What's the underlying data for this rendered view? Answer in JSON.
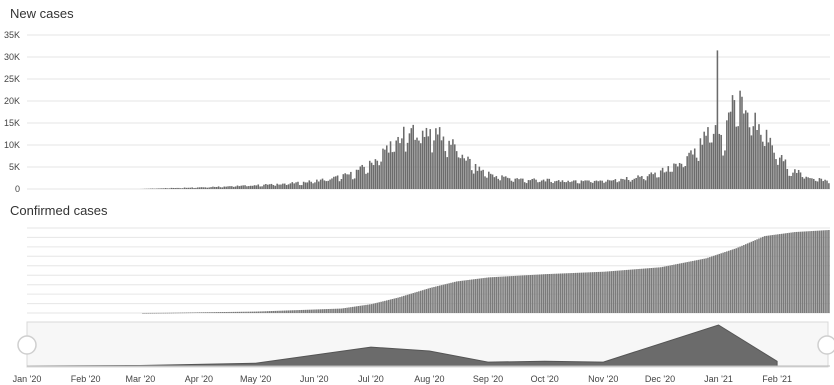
{
  "chart_data": [
    {
      "type": "bar",
      "title": "New cases",
      "y_ticks": [
        "35K",
        "30K",
        "25K",
        "20K",
        "15K",
        "10K",
        "5K",
        "0"
      ],
      "ylim": [
        0,
        35000
      ],
      "grid": true,
      "bar_color": "#6b6b6b",
      "x_unit": "date",
      "x_start": "2020-01-22",
      "x_end": "2021-02-28",
      "daily_profile": [
        {
          "date": "2020-01-22",
          "value": 0
        },
        {
          "date": "2020-02-29",
          "value": 0
        },
        {
          "date": "2020-03-10",
          "value": 150
        },
        {
          "date": "2020-04-01",
          "value": 400
        },
        {
          "date": "2020-05-01",
          "value": 900
        },
        {
          "date": "2020-05-25",
          "value": 1500
        },
        {
          "date": "2020-06-10",
          "value": 2500
        },
        {
          "date": "2020-06-20",
          "value": 3500
        },
        {
          "date": "2020-07-01",
          "value": 6000
        },
        {
          "date": "2020-07-10",
          "value": 10000
        },
        {
          "date": "2020-07-18",
          "value": 12500
        },
        {
          "date": "2020-07-25",
          "value": 13800
        },
        {
          "date": "2020-08-05",
          "value": 13500
        },
        {
          "date": "2020-08-15",
          "value": 9500
        },
        {
          "date": "2020-08-25",
          "value": 5000
        },
        {
          "date": "2020-09-05",
          "value": 3000
        },
        {
          "date": "2020-09-20",
          "value": 2200
        },
        {
          "date": "2020-10-15",
          "value": 1900
        },
        {
          "date": "2020-11-10",
          "value": 2200
        },
        {
          "date": "2020-11-25",
          "value": 3200
        },
        {
          "date": "2020-12-10",
          "value": 5500
        },
        {
          "date": "2020-12-20",
          "value": 9000
        },
        {
          "date": "2020-12-28",
          "value": 14000
        },
        {
          "date": "2021-01-03",
          "value": 12000
        },
        {
          "date": "2021-01-09",
          "value": 21500
        },
        {
          "date": "2021-01-15",
          "value": 19000
        },
        {
          "date": "2021-01-22",
          "value": 15000
        },
        {
          "date": "2021-01-30",
          "value": 9000
        },
        {
          "date": "2021-02-08",
          "value": 4500
        },
        {
          "date": "2021-02-18",
          "value": 2800
        },
        {
          "date": "2021-02-28",
          "value": 1800
        }
      ],
      "spikes": [
        {
          "date": "2020-12-31",
          "value": 31500
        }
      ]
    },
    {
      "type": "bar",
      "title": "Confirmed cases",
      "grid": true,
      "bar_color": "#7a7a7a",
      "x_unit": "date",
      "x_start": "2020-01-22",
      "x_end": "2021-02-28",
      "ylim": [
        0,
        2100000
      ],
      "cumulative_profile": [
        {
          "date": "2020-01-22",
          "value": 0
        },
        {
          "date": "2020-03-01",
          "value": 0
        },
        {
          "date": "2020-03-15",
          "value": 5000
        },
        {
          "date": "2020-05-01",
          "value": 35000
        },
        {
          "date": "2020-06-15",
          "value": 110000
        },
        {
          "date": "2020-07-01",
          "value": 220000
        },
        {
          "date": "2020-07-15",
          "value": 380000
        },
        {
          "date": "2020-08-01",
          "value": 620000
        },
        {
          "date": "2020-08-15",
          "value": 780000
        },
        {
          "date": "2020-09-01",
          "value": 880000
        },
        {
          "date": "2020-10-01",
          "value": 960000
        },
        {
          "date": "2020-11-01",
          "value": 1020000
        },
        {
          "date": "2020-12-01",
          "value": 1130000
        },
        {
          "date": "2020-12-25",
          "value": 1350000
        },
        {
          "date": "2021-01-10",
          "value": 1600000
        },
        {
          "date": "2021-01-25",
          "value": 1900000
        },
        {
          "date": "2021-02-10",
          "value": 2000000
        },
        {
          "date": "2021-02-28",
          "value": 2050000
        }
      ]
    },
    {
      "type": "area",
      "role": "navigator",
      "fill_color": "#6b6b6b",
      "x_unit": "date",
      "x_ticks": [
        "Jan '20",
        "Feb '20",
        "Mar '20",
        "Apr '20",
        "May '20",
        "Jun '20",
        "Jul '20",
        "Aug '20",
        "Sep '20",
        "Oct '20",
        "Nov '20",
        "Dec '20",
        "Jan '21",
        "Feb '21"
      ],
      "x_tick_dates": [
        "2020-01-01",
        "2020-02-01",
        "2020-03-01",
        "2020-04-01",
        "2020-05-01",
        "2020-06-01",
        "2020-07-01",
        "2020-08-01",
        "2020-09-01",
        "2020-10-01",
        "2020-11-01",
        "2020-12-01",
        "2021-01-01",
        "2021-02-01"
      ],
      "points": [
        {
          "date": "2020-01-01",
          "value": 0
        },
        {
          "date": "2020-03-01",
          "value": 300
        },
        {
          "date": "2020-05-01",
          "value": 1800
        },
        {
          "date": "2020-07-01",
          "value": 12000
        },
        {
          "date": "2020-08-01",
          "value": 9500
        },
        {
          "date": "2020-09-01",
          "value": 2500
        },
        {
          "date": "2020-10-01",
          "value": 3000
        },
        {
          "date": "2020-11-01",
          "value": 2500
        },
        {
          "date": "2021-01-01",
          "value": 26000
        },
        {
          "date": "2021-02-01",
          "value": 3000
        }
      ],
      "range_start": "2020-01-01",
      "range_end": "2021-03-01"
    }
  ]
}
